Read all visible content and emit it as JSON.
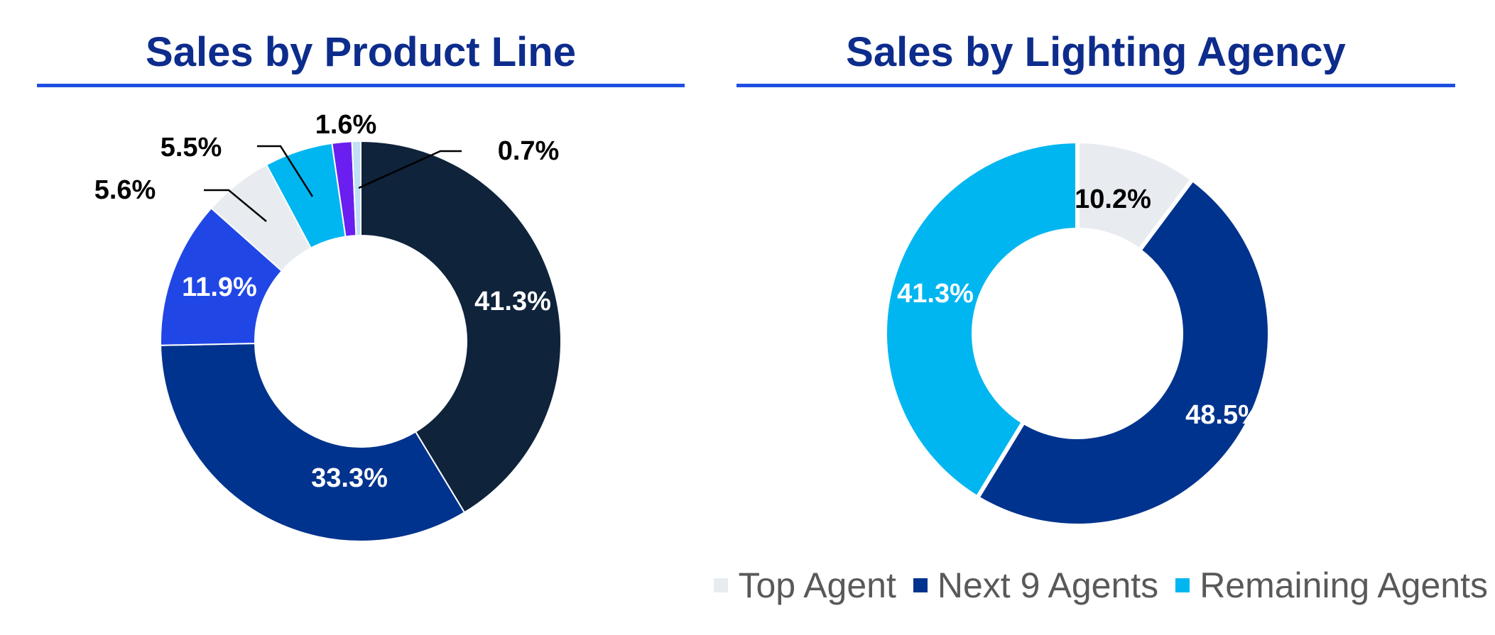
{
  "chart_data": [
    {
      "type": "pie",
      "title": "Sales by Product Line",
      "slices": [
        {
          "value": 41.3,
          "label": "41.3%",
          "color": "#0f233b",
          "text_color": "#ffffff"
        },
        {
          "value": 33.3,
          "label": "33.3%",
          "color": "#00338d",
          "text_color": "#ffffff"
        },
        {
          "value": 11.9,
          "label": "11.9%",
          "color": "#2047e6",
          "text_color": "#ffffff"
        },
        {
          "value": 5.6,
          "label": "5.6%",
          "color": "#e8ecf0",
          "text_color": "#000000"
        },
        {
          "value": 5.5,
          "label": "5.5%",
          "color": "#00b6f0",
          "text_color": "#000000"
        },
        {
          "value": 1.6,
          "label": "1.6%",
          "color": "#6a1ff0",
          "text_color": "#000000"
        },
        {
          "value": 0.7,
          "label": "0.7%",
          "color": "#bfe0f5",
          "text_color": "#000000"
        }
      ]
    },
    {
      "type": "pie",
      "title": "Sales by Lighting Agency",
      "slices": [
        {
          "name": "Top Agent",
          "value": 10.2,
          "label": "10.2%",
          "color": "#e8ecf0",
          "text_color": "#000000"
        },
        {
          "name": "Next 9 Agents",
          "value": 48.5,
          "label": "48.5%",
          "color": "#00338d",
          "text_color": "#ffffff"
        },
        {
          "name": "Remaining Agents",
          "value": 41.3,
          "label": "41.3%",
          "color": "#00b6f0",
          "text_color": "#ffffff"
        }
      ],
      "legend": {
        "placement": "bottom-right",
        "entries": [
          {
            "label": "Top Agent",
            "color": "#e8ecf0"
          },
          {
            "label": "Next 9 Agents",
            "color": "#00338d"
          },
          {
            "label": "Remaining Agents",
            "color": "#00b6f0"
          }
        ]
      }
    }
  ]
}
